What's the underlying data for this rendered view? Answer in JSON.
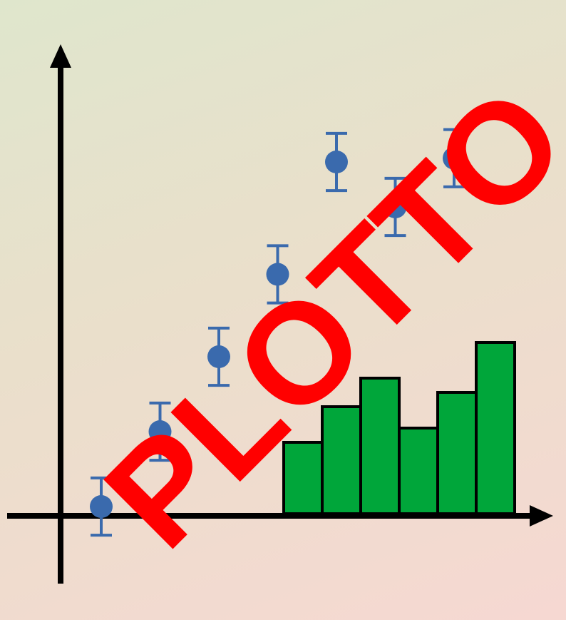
{
  "logo": {
    "wordmark": "PLOTTO",
    "colors": {
      "axis": "#000000",
      "points": "#3a6aad",
      "bars": "#00a63a",
      "bar_outline": "#000000",
      "wordmark": "#ff0000"
    }
  },
  "scatter": {
    "points": [
      {
        "y": 1.0,
        "err": 0.45
      },
      {
        "y": 2.0,
        "err": 0.45
      },
      {
        "y": 3.0,
        "err": 0.45
      },
      {
        "y": 4.1,
        "err": 0.45
      },
      {
        "y": 5.6,
        "err": 0.45
      },
      {
        "y": 5.0,
        "err": 0.45
      },
      {
        "y": 5.65,
        "err": 0.45
      }
    ]
  },
  "bars": {
    "values": [
      1.0,
      1.5,
      1.9,
      1.2,
      1.7,
      2.4
    ]
  }
}
